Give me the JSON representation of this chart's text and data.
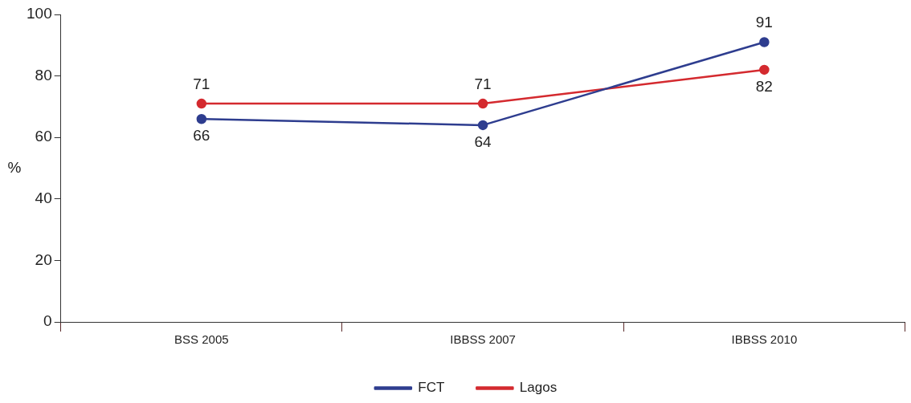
{
  "chart_data": {
    "type": "line",
    "ylabel": "%",
    "categories": [
      "BSS 2005",
      "IBBSS 2007",
      "IBBSS 2010"
    ],
    "series": [
      {
        "name": "FCT",
        "color": "#2e3d8f",
        "values": [
          66,
          64,
          91
        ]
      },
      {
        "name": "Lagos",
        "color": "#d42a2f",
        "values": [
          71,
          71,
          82
        ]
      }
    ],
    "ylim": [
      0,
      100
    ],
    "yticks": [
      0,
      20,
      40,
      60,
      80,
      100
    ],
    "grid": false,
    "legend": "bottom",
    "marker": "circle",
    "data_labels": true
  }
}
